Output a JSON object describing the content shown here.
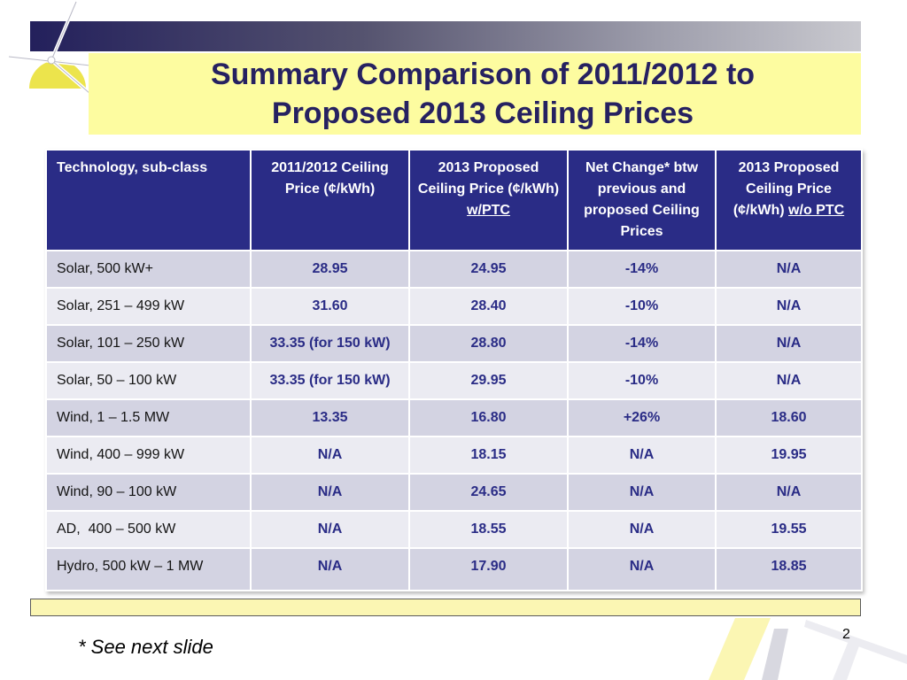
{
  "slide": {
    "title_line1": "Summary Comparison of 2011/2012 to",
    "title_line2": "Proposed 2013 Ceiling Prices",
    "footnote": "* See next slide",
    "page_number": "2",
    "logo": "wind-turbine-icon",
    "colors": {
      "header_fill": "#2a2c86",
      "title_text": "#262161",
      "title_fill": "#fdfca0",
      "row_odd": "#d3d3e2",
      "row_even": "#ebebf2"
    }
  },
  "table": {
    "headers": {
      "c0": "Technology, sub-class",
      "c1": "2011/2012 Ceiling Price (¢/kWh)",
      "c2_pre": "2013 Proposed Ceiling Price (¢/kWh) ",
      "c2_u": "w/PTC",
      "c3": "Net Change* btw previous and proposed Ceiling Prices",
      "c4_pre": "2013 Proposed Ceiling Price (¢/kWh) ",
      "c4_u": "w/o PTC"
    },
    "rows": [
      {
        "tech": "Solar, 500 kW+",
        "price_2011": "28.95",
        "proposed_ptc": "24.95",
        "net_change": "-14%",
        "proposed_no_ptc": "N/A"
      },
      {
        "tech": "Solar, 251 – 499 kW",
        "price_2011": "31.60",
        "proposed_ptc": "28.40",
        "net_change": "-10%",
        "proposed_no_ptc": "N/A"
      },
      {
        "tech": "Solar, 101 – 250 kW",
        "price_2011": "33.35 (for 150 kW)",
        "proposed_ptc": "28.80",
        "net_change": "-14%",
        "proposed_no_ptc": "N/A"
      },
      {
        "tech": "Solar, 50 – 100 kW",
        "price_2011": "33.35 (for 150 kW)",
        "proposed_ptc": "29.95",
        "net_change": "-10%",
        "proposed_no_ptc": "N/A"
      },
      {
        "tech": "Wind, 1 – 1.5 MW",
        "price_2011": "13.35",
        "proposed_ptc": "16.80",
        "net_change": "+26%",
        "proposed_no_ptc": "18.60"
      },
      {
        "tech": "Wind, 400 – 999 kW",
        "price_2011": "N/A",
        "proposed_ptc": "18.15",
        "net_change": "N/A",
        "proposed_no_ptc": "19.95"
      },
      {
        "tech": "Wind, 90 – 100 kW",
        "price_2011": "N/A",
        "proposed_ptc": "24.65",
        "net_change": "N/A",
        "proposed_no_ptc": "N/A"
      },
      {
        "tech": "AD,  400 – 500 kW",
        "price_2011": "N/A",
        "proposed_ptc": "18.55",
        "net_change": "N/A",
        "proposed_no_ptc": "19.55"
      },
      {
        "tech": "Hydro, 500 kW – 1 MW",
        "price_2011": "N/A",
        "proposed_ptc": "17.90",
        "net_change": "N/A",
        "proposed_no_ptc": "18.85"
      }
    ]
  }
}
